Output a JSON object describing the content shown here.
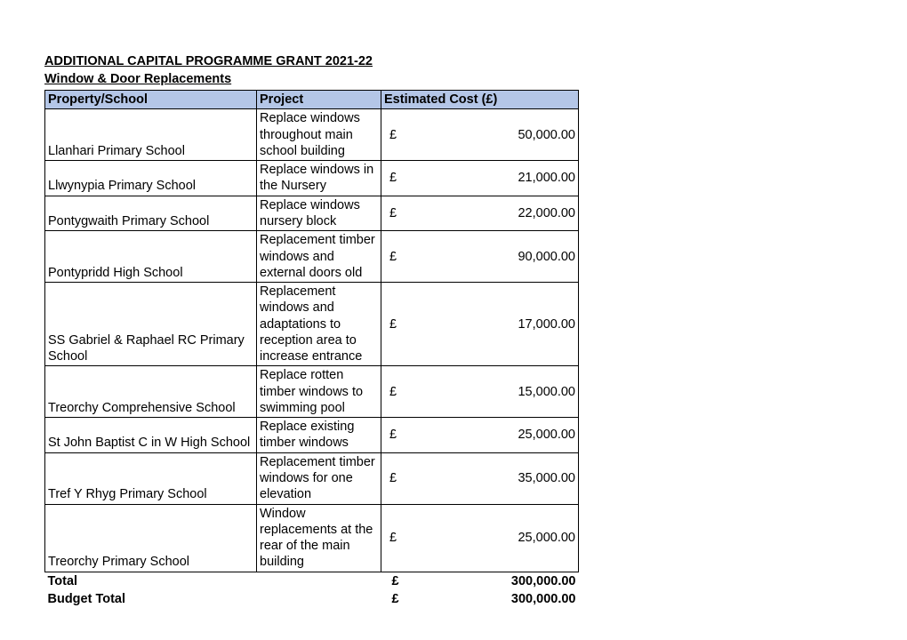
{
  "title_line1": "ADDITIONAL CAPITAL PROGRAMME GRANT 2021-22",
  "title_line2": "Window & Door Replacements",
  "header_bg": "#b4c6e7",
  "columns": [
    "Property/School",
    "Project",
    "Estimated Cost (£)"
  ],
  "currency_symbol": "£",
  "rows": [
    {
      "property": "Llanhari Primary School",
      "project": "Replace windows throughout main school building",
      "cost": "50,000.00"
    },
    {
      "property": "Llwynypia Primary School",
      "project": "Replace windows in the Nursery",
      "cost": "21,000.00"
    },
    {
      "property": "Pontygwaith Primary School",
      "project": "Replace windows nursery block",
      "cost": "22,000.00"
    },
    {
      "property": "Pontypridd High School",
      "project": "Replacement timber windows and external doors old",
      "cost": "90,000.00"
    },
    {
      "property": "SS Gabriel & Raphael RC Primary School",
      "project": "Replacement windows and adaptations to reception area to increase entrance",
      "cost": "17,000.00"
    },
    {
      "property": "Treorchy Comprehensive School",
      "project": "Replace rotten timber windows to swimming pool",
      "cost": "15,000.00"
    },
    {
      "property": "St John Baptist C in W High School",
      "project": "Replace existing timber windows",
      "cost": "25,000.00"
    },
    {
      "property": "Tref Y Rhyg Primary School",
      "project": "Replacement timber windows for one elevation",
      "cost": "35,000.00"
    },
    {
      "property": "Treorchy Primary School",
      "project": "Window replacements at the rear of the main building",
      "cost": "25,000.00"
    }
  ],
  "footer": [
    {
      "label": "Total",
      "cost": "300,000.00"
    },
    {
      "label": "Budget Total",
      "cost": "300,000.00"
    }
  ]
}
